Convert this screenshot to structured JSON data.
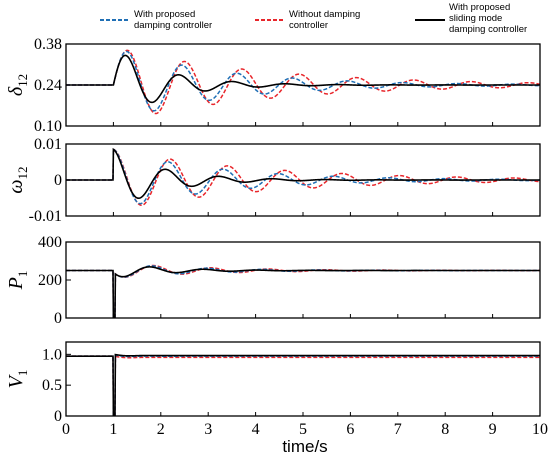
{
  "chart_data": {
    "type": "line",
    "xlabel": "time/s",
    "xlim": [
      0,
      10
    ],
    "xticks": [
      "0",
      "1",
      "2",
      "3",
      "4",
      "5",
      "6",
      "7",
      "8",
      "9",
      "10"
    ],
    "legend": {
      "placement": "top",
      "entries": [
        {
          "key": "proposed",
          "line1": "With proposed",
          "line2": "damping controller",
          "line3": "",
          "color": "#1f6fb5",
          "dash": true
        },
        {
          "key": "without",
          "line1": "Without damping",
          "line2": "controller",
          "line3": "",
          "color": "#e8262b",
          "dash": true
        },
        {
          "key": "sliding",
          "line1": "With proposed",
          "line2": "sliding mode",
          "line3": "damping controller",
          "color": "#000000",
          "dash": false
        }
      ]
    },
    "panels": [
      {
        "ylabel_main": "δ",
        "ylabel_sub": "12",
        "ylim": [
          0.1,
          0.38
        ],
        "yticks": [
          "0.10",
          "0.24",
          "0.38"
        ],
        "ytick_values": [
          0.1,
          0.24,
          0.38
        ],
        "kind": "osc",
        "base": 0.24,
        "amp": 0.13,
        "dip": 0,
        "series": {
          "sliding": {
            "decay": 0.95,
            "omega": 5.6
          },
          "proposed": {
            "decay": 0.45,
            "omega": 5.4
          },
          "without": {
            "decay": 0.32,
            "omega": 5.2
          }
        }
      },
      {
        "ylabel_main": "ω",
        "ylabel_sub": "12",
        "ylim": [
          -0.01,
          0.01
        ],
        "yticks": [
          "-0.01",
          "0",
          "0.01"
        ],
        "ytick_values": [
          -0.01,
          0,
          0.01
        ],
        "kind": "osc",
        "base": 0,
        "amp": 0.0085,
        "dip": 0,
        "series": {
          "sliding": {
            "decay": 0.95,
            "omega": 5.6
          },
          "proposed": {
            "decay": 0.45,
            "omega": 5.4
          },
          "without": {
            "decay": 0.32,
            "omega": 5.2
          }
        }
      },
      {
        "ylabel_main": "P",
        "ylabel_sub": "1",
        "ylim": [
          0,
          400
        ],
        "yticks": [
          "0",
          "200",
          "400"
        ],
        "ytick_values": [
          0,
          200,
          400
        ],
        "kind": "osc",
        "base": 250,
        "amp": 40,
        "dip": -250,
        "series": {
          "sliding": {
            "decay": 0.95,
            "omega": 5.6
          },
          "proposed": {
            "decay": 0.6,
            "omega": 5.4
          },
          "without": {
            "decay": 0.5,
            "omega": 5.2
          }
        }
      },
      {
        "ylabel_main": "V",
        "ylabel_sub": "1",
        "ylim": [
          0,
          1.2
        ],
        "yticks": [
          "0",
          "0.5",
          "1.0"
        ],
        "ytick_values": [
          0,
          0.5,
          1.0
        ],
        "kind": "volt",
        "base": 0.97,
        "amp": 0.02,
        "dip": -0.97,
        "series": {
          "sliding": {
            "offset": 0.01
          },
          "proposed": {
            "offset": 0.0
          },
          "without": {
            "offset": -0.02
          }
        }
      }
    ]
  }
}
